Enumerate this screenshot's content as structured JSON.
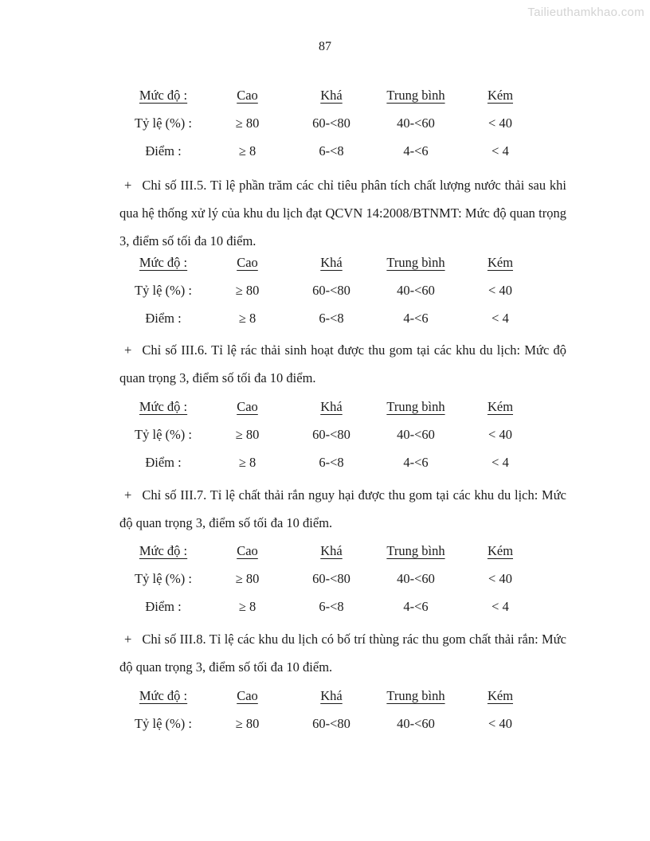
{
  "watermark": "Tailieuthamkhao.com",
  "page_number": "87",
  "tables": [
    {
      "header": [
        "Mức độ :",
        "Cao",
        "Khá",
        "Trung bình",
        "Kém"
      ],
      "rows": [
        [
          "Tỷ lệ (%) :",
          "≥ 80",
          "60-<80",
          "40-<60",
          "< 40"
        ],
        [
          "Điểm :",
          "≥ 8",
          "6-<8",
          "4-<6",
          "< 4"
        ]
      ]
    },
    {
      "header": [
        "Mức độ :",
        "Cao",
        "Khá",
        "Trung bình",
        "Kém"
      ],
      "rows": [
        [
          "Tỷ lệ (%) :",
          "≥ 80",
          "60-<80",
          "40-<60",
          "< 40"
        ],
        [
          "Điểm :",
          "≥ 8",
          "6-<8",
          "4-<6",
          "< 4"
        ]
      ]
    },
    {
      "header": [
        "Mức độ :",
        "Cao",
        "Khá",
        "Trung bình",
        "Kém"
      ],
      "rows": [
        [
          "Tỷ lệ (%) :",
          "≥ 80",
          "60-<80",
          "40-<60",
          "< 40"
        ],
        [
          "Điểm :",
          "≥ 8",
          "6-<8",
          "4-<6",
          "< 4"
        ]
      ]
    },
    {
      "header": [
        "Mức độ :",
        "Cao",
        "Khá",
        "Trung bình",
        "Kém"
      ],
      "rows": [
        [
          "Tỷ lệ (%) :",
          "≥ 80",
          "60-<80",
          "40-<60",
          "< 40"
        ],
        [
          "Điểm :",
          "≥ 8",
          "6-<8",
          "4-<6",
          "< 4"
        ]
      ]
    },
    {
      "header": [
        "Mức độ :",
        "Cao",
        "Khá",
        "Trung bình",
        "Kém"
      ],
      "rows": [
        [
          "Tỷ lệ (%) :",
          "≥ 80",
          "60-<80",
          "40-<60",
          "< 40"
        ]
      ]
    }
  ],
  "paragraphs": [
    {
      "bullet": "+",
      "text": "Chỉ số III.5. Tỉ lệ phần trăm các chỉ tiêu phân tích chất lượng nước thải sau khi qua hệ thống xử lý của khu du lịch đạt QCVN 14:2008/BTNMT: Mức độ quan trọng 3, điểm số tối đa 10 điểm."
    },
    {
      "bullet": "+",
      "text": "Chỉ số III.6. Tỉ lệ rác thải sinh hoạt được thu gom tại các khu du lịch: Mức độ quan trọng 3, điểm số tối đa 10 điểm."
    },
    {
      "bullet": "+",
      "text": "Chỉ số III.7. Tỉ lệ chất thải rắn nguy hại được thu gom tại các khu du lịch: Mức độ quan trọng 3, điểm số tối đa 10 điểm."
    },
    {
      "bullet": "+",
      "text": "Chỉ số III.8. Tỉ lệ các khu du lịch có bố trí thùng rác thu gom chất thải rắn: Mức độ quan trọng 3, điểm số tối đa 10 điểm."
    }
  ]
}
